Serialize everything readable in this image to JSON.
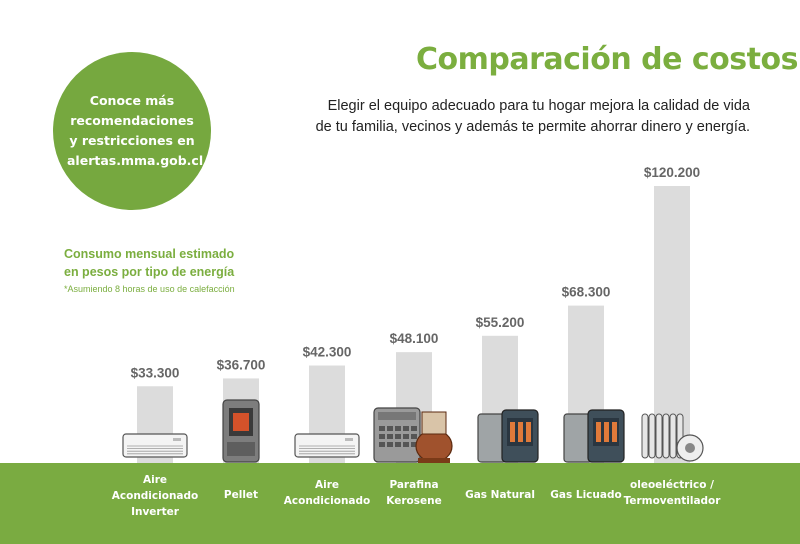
{
  "header": {
    "title": "Comparación de costos",
    "subtitle_line1": "Elegir el equipo adecuado para tu hogar  mejora la calidad de vida",
    "subtitle_line2": "de tu familia, vecinos y además te permite ahorrar dinero y energía."
  },
  "badge": {
    "text": "Conoce más recomendaciones y restricciones en alertas.mma.gob.cl"
  },
  "legend_text": {
    "title_line1": "Consumo mensual estimado",
    "title_line2": "en pesos por tipo de energía",
    "note": "*Asumiendo 8 horas de uso de calefacción"
  },
  "colors": {
    "accent_green": "#7bae3f",
    "ground_green": "#7aab41",
    "bar_gray": "#dcdcdc",
    "value_gray": "#666666"
  },
  "chart_data": {
    "type": "bar",
    "categories": [
      [
        "Aire",
        "Acondicionado",
        "Inverter"
      ],
      [
        "Pellet"
      ],
      [
        "Aire",
        "Acondicionado"
      ],
      [
        "Parafina",
        "Kerosene"
      ],
      [
        "Gas Natural"
      ],
      [
        "Gas Licuado"
      ],
      [
        "oleoeléctrico /",
        "Termoventilador"
      ]
    ],
    "values": [
      33300,
      36700,
      42300,
      48100,
      55200,
      68300,
      120200
    ],
    "value_labels": [
      "$33.300",
      "$36.700",
      "$42.300",
      "$48.100",
      "$55.200",
      "$68.300",
      "$120.200"
    ],
    "icons": [
      "split-ac-icon",
      "pellet-stove-icon",
      "split-ac-icon",
      "kerosene-heater-icon",
      "gas-heater-icon",
      "gas-heater-icon",
      "oil-radiator-icon"
    ],
    "ylim": [
      0,
      120200
    ],
    "grid": false
  }
}
